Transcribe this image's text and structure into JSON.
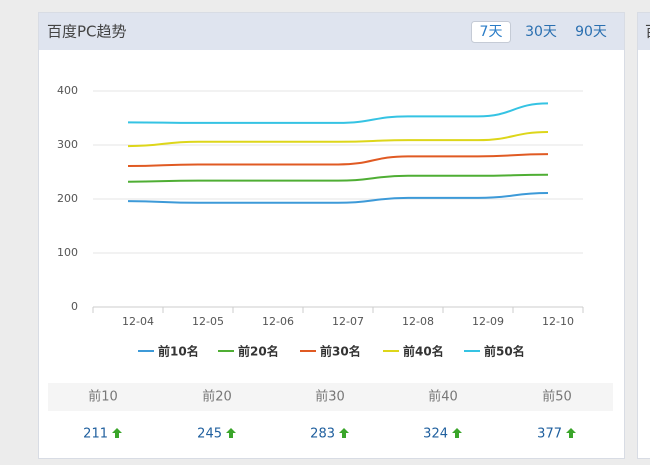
{
  "header": {
    "title": "百度PC趋势",
    "ranges": [
      "7天",
      "30天",
      "90天"
    ],
    "active_range": 0
  },
  "next_panel_title": "百",
  "chart_data": {
    "type": "line",
    "categories": [
      "12-04",
      "12-05",
      "12-06",
      "12-07",
      "12-08",
      "12-09",
      "12-10"
    ],
    "series": [
      {
        "name": "前10名",
        "color": "#3d9ad8",
        "values": [
          196,
          193,
          193,
          193,
          202,
          202,
          211
        ]
      },
      {
        "name": "前20名",
        "color": "#4fae34",
        "values": [
          232,
          234,
          234,
          234,
          243,
          243,
          245
        ]
      },
      {
        "name": "前30名",
        "color": "#e05a23",
        "values": [
          261,
          264,
          264,
          264,
          279,
          279,
          283
        ]
      },
      {
        "name": "前40名",
        "color": "#ddd61a",
        "values": [
          298,
          306,
          306,
          306,
          309,
          309,
          324
        ]
      },
      {
        "name": "前50名",
        "color": "#35c3e3",
        "values": [
          342,
          341,
          341,
          341,
          353,
          353,
          377
        ]
      }
    ],
    "ylim": [
      0,
      400
    ],
    "yticks": [
      0,
      100,
      200,
      300,
      400
    ],
    "grid": true,
    "legend": "bottom"
  },
  "summary": {
    "labels": [
      "前10",
      "前20",
      "前30",
      "前40",
      "前50"
    ],
    "values": [
      211,
      245,
      283,
      324,
      377
    ]
  }
}
